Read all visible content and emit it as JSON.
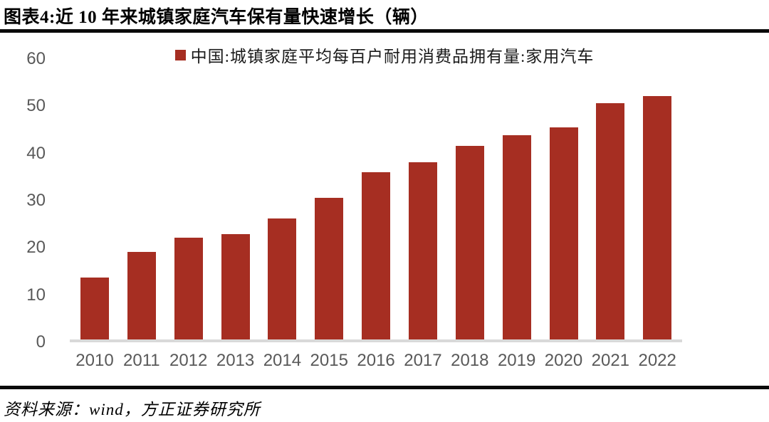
{
  "page": {
    "title": "图表4:近 10 年来城镇家庭汽车保有量快速增长（辆）",
    "source_note": "资料来源：wind，方正证券研究所"
  },
  "chart_data": {
    "type": "bar",
    "title": "图表4:近 10 年来城镇家庭汽车保有量快速增长（辆）",
    "legend": [
      "中国:城镇家庭平均每百户耐用消费品拥有量:家用汽车"
    ],
    "legend_position": "top-center",
    "categories": [
      "2010",
      "2011",
      "2012",
      "2013",
      "2014",
      "2015",
      "2016",
      "2017",
      "2018",
      "2019",
      "2020",
      "2021",
      "2022"
    ],
    "values": [
      13.1,
      18.6,
      21.5,
      22.3,
      25.7,
      30.0,
      35.5,
      37.5,
      41.0,
      43.2,
      44.9,
      50.1,
      51.6
    ],
    "xlabel": "",
    "ylabel": "",
    "ylim": [
      0,
      60
    ],
    "yticks": [
      0,
      10,
      20,
      30,
      40,
      50,
      60
    ],
    "grid": false,
    "bar_color": "#A62E22",
    "tick_label_color": "#595959",
    "axis_line_color": "#D9D9D9",
    "source": "资料来源：wind，方正证券研究所"
  }
}
